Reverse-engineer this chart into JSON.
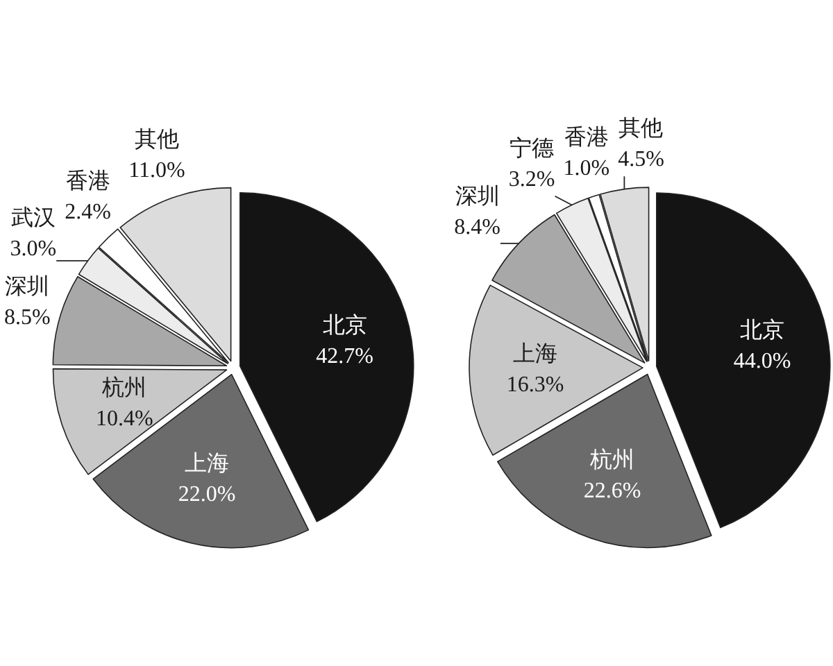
{
  "chart_data": [
    {
      "type": "pie",
      "categories": [
        "北京",
        "上海",
        "杭州",
        "深圳",
        "武汉",
        "香港",
        "其他"
      ],
      "values": [
        42.7,
        22.0,
        10.4,
        8.5,
        3.0,
        2.4,
        11.0
      ],
      "value_labels": [
        "42.7%",
        "22.0%",
        "10.4%",
        "8.5%",
        "3.0%",
        "2.4%",
        "11.0%"
      ],
      "colors": [
        "#141414",
        "#6b6b6b",
        "#c8c8c8",
        "#a8a8a8",
        "#ececec",
        "#ffffff",
        "#dcdcdc"
      ]
    },
    {
      "type": "pie",
      "categories": [
        "北京",
        "杭州",
        "上海",
        "深圳",
        "宁德",
        "香港",
        "其他"
      ],
      "values": [
        44.0,
        22.6,
        16.3,
        8.4,
        3.2,
        1.0,
        4.5
      ],
      "value_labels": [
        "44.0%",
        "22.6%",
        "16.3%",
        "8.4%",
        "3.2%",
        "1.0%",
        "4.5%"
      ],
      "colors": [
        "#141414",
        "#6b6b6b",
        "#c8c8c8",
        "#a8a8a8",
        "#ececec",
        "#ffffff",
        "#dcdcdc"
      ]
    }
  ]
}
